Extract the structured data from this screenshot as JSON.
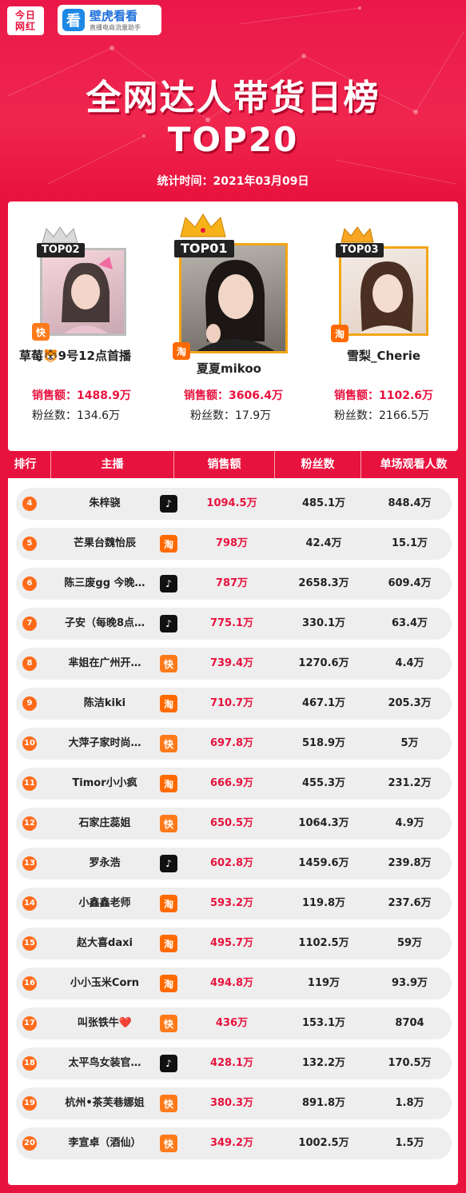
{
  "logos": {
    "jrwh_line1": "今日",
    "jrwh_line2": "网红",
    "bhkk_icon": "看",
    "bhkk_name": "壁虎看看",
    "bhkk_slogan": "直播电商流量助手"
  },
  "title": "全网达人带货日榜",
  "subtitle": "TOP20",
  "stat_time": "统计时间：2021年03月09日",
  "podium": {
    "first": {
      "tag": "TOP01",
      "name": "夏夏mikoo",
      "platform": "taobao",
      "platform_glyph": "淘",
      "sales_label": "销售额：",
      "sales": "3606.4万",
      "fans_label": "粉丝数：",
      "fans": "17.9万"
    },
    "second": {
      "tag": "TOP02",
      "name": "草莓🐯9号12点首播",
      "platform": "kuaishou",
      "platform_glyph": "快",
      "sales_label": "销售额：",
      "sales": "1488.9万",
      "fans_label": "粉丝数：",
      "fans": "134.6万"
    },
    "third": {
      "tag": "TOP03",
      "name": "雪梨_Cherie",
      "platform": "taobao",
      "platform_glyph": "淘",
      "sales_label": "销售额：",
      "sales": "1102.6万",
      "fans_label": "粉丝数：",
      "fans": "2166.5万"
    }
  },
  "table": {
    "headers": [
      "排行",
      "主播",
      "销售额",
      "粉丝数",
      "单场观看人数"
    ],
    "rows": [
      {
        "rank": "4",
        "anchor": "朱梓骁",
        "platform": "douyin",
        "glyph": "♪",
        "sales": "1094.5万",
        "fans": "485.1万",
        "views": "848.4万"
      },
      {
        "rank": "5",
        "anchor": "芒果台魏怡辰",
        "platform": "taobao",
        "glyph": "淘",
        "sales": "798万",
        "fans": "42.4万",
        "views": "15.1万"
      },
      {
        "rank": "6",
        "anchor": "陈三废gg 今晚…",
        "platform": "douyin",
        "glyph": "♪",
        "sales": "787万",
        "fans": "2658.3万",
        "views": "609.4万"
      },
      {
        "rank": "7",
        "anchor": "子安（每晚8点…",
        "platform": "douyin",
        "glyph": "♪",
        "sales": "775.1万",
        "fans": "330.1万",
        "views": "63.4万"
      },
      {
        "rank": "8",
        "anchor": "芈姐在广州开…",
        "platform": "kuaishou",
        "glyph": "快",
        "sales": "739.4万",
        "fans": "1270.6万",
        "views": "4.4万"
      },
      {
        "rank": "9",
        "anchor": "陈洁kiki",
        "platform": "taobao",
        "glyph": "淘",
        "sales": "710.7万",
        "fans": "467.1万",
        "views": "205.3万"
      },
      {
        "rank": "10",
        "anchor": "大萍子家时尚…",
        "platform": "kuaishou",
        "glyph": "快",
        "sales": "697.8万",
        "fans": "518.9万",
        "views": "5万"
      },
      {
        "rank": "11",
        "anchor": "Timor小小疯",
        "platform": "taobao",
        "glyph": "淘",
        "sales": "666.9万",
        "fans": "455.3万",
        "views": "231.2万"
      },
      {
        "rank": "12",
        "anchor": "石家庄蕊姐",
        "platform": "kuaishou",
        "glyph": "快",
        "sales": "650.5万",
        "fans": "1064.3万",
        "views": "4.9万"
      },
      {
        "rank": "13",
        "anchor": "罗永浩",
        "platform": "douyin",
        "glyph": "♪",
        "sales": "602.8万",
        "fans": "1459.6万",
        "views": "239.8万"
      },
      {
        "rank": "14",
        "anchor": "小鑫鑫老师",
        "platform": "taobao",
        "glyph": "淘",
        "sales": "593.2万",
        "fans": "119.8万",
        "views": "237.6万"
      },
      {
        "rank": "15",
        "anchor": "赵大喜daxi",
        "platform": "taobao",
        "glyph": "淘",
        "sales": "495.7万",
        "fans": "1102.5万",
        "views": "59万"
      },
      {
        "rank": "16",
        "anchor": "小小玉米Corn",
        "platform": "taobao",
        "glyph": "淘",
        "sales": "494.8万",
        "fans": "119万",
        "views": "93.9万"
      },
      {
        "rank": "17",
        "anchor": "叫张铁牛❤️",
        "platform": "kuaishou",
        "glyph": "快",
        "sales": "436万",
        "fans": "153.1万",
        "views": "8704"
      },
      {
        "rank": "18",
        "anchor": "太平鸟女装官…",
        "platform": "douyin",
        "glyph": "♪",
        "sales": "428.1万",
        "fans": "132.2万",
        "views": "170.5万"
      },
      {
        "rank": "19",
        "anchor": "杭州•茶芙巷娜姐",
        "platform": "kuaishou",
        "glyph": "快",
        "sales": "380.3万",
        "fans": "891.8万",
        "views": "1.8万"
      },
      {
        "rank": "20",
        "anchor": "李宣卓（酒仙）",
        "platform": "kuaishou",
        "glyph": "快",
        "sales": "349.2万",
        "fans": "1002.5万",
        "views": "1.5万"
      }
    ]
  },
  "colors": {
    "brand_red": "#e8123e",
    "gold": "#f3a515",
    "silver": "#bdbdbd",
    "douyin": "#111111",
    "taobao": "#ff6a00",
    "kuaishou": "#ff7a1a"
  }
}
